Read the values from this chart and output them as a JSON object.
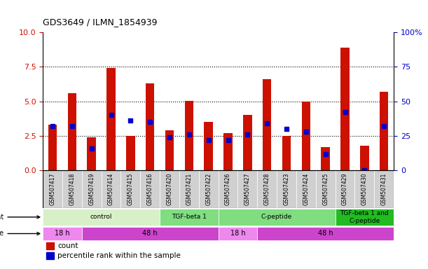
{
  "title": "GDS3649 / ILMN_1854939",
  "samples": [
    "GSM507417",
    "GSM507418",
    "GSM507419",
    "GSM507414",
    "GSM507415",
    "GSM507416",
    "GSM507420",
    "GSM507421",
    "GSM507422",
    "GSM507426",
    "GSM507427",
    "GSM507428",
    "GSM507423",
    "GSM507424",
    "GSM507425",
    "GSM507429",
    "GSM507430",
    "GSM507431"
  ],
  "count_values": [
    3.3,
    5.6,
    2.4,
    7.4,
    2.5,
    6.3,
    2.9,
    5.05,
    3.5,
    2.7,
    4.0,
    6.6,
    2.5,
    5.0,
    1.7,
    8.9,
    1.8,
    5.7
  ],
  "percentile_values": [
    3.2,
    3.2,
    1.6,
    4.0,
    3.6,
    3.5,
    2.4,
    2.6,
    2.2,
    2.2,
    2.6,
    3.4,
    3.0,
    2.8,
    1.2,
    4.2,
    0.0,
    3.2
  ],
  "count_color": "#cc1100",
  "percentile_color": "#0000cc",
  "ylim_left": [
    0,
    10
  ],
  "ylim_right": [
    0,
    100
  ],
  "yticks_left": [
    0,
    2.5,
    5.0,
    7.5,
    10
  ],
  "yticks_right": [
    0,
    25,
    50,
    75,
    100
  ],
  "agent_groups": [
    {
      "label": "control",
      "start": 0,
      "end": 6,
      "color": "#d8f0c8"
    },
    {
      "label": "TGF-beta 1",
      "start": 6,
      "end": 9,
      "color": "#80dd80"
    },
    {
      "label": "C-peptide",
      "start": 9,
      "end": 15,
      "color": "#80dd80"
    },
    {
      "label": "TGF-beta 1 and\nC-peptide",
      "start": 15,
      "end": 18,
      "color": "#22bb22"
    }
  ],
  "time_groups": [
    {
      "label": "18 h",
      "start": 0,
      "end": 2,
      "color": "#ee88ee"
    },
    {
      "label": "48 h",
      "start": 2,
      "end": 9,
      "color": "#cc44cc"
    },
    {
      "label": "18 h",
      "start": 9,
      "end": 11,
      "color": "#ee88ee"
    },
    {
      "label": "48 h",
      "start": 11,
      "end": 18,
      "color": "#cc44cc"
    }
  ],
  "bar_width": 0.45,
  "blue_marker_size": 5,
  "bg_color": "#ffffff",
  "sample_box_color": "#d0d0d0"
}
